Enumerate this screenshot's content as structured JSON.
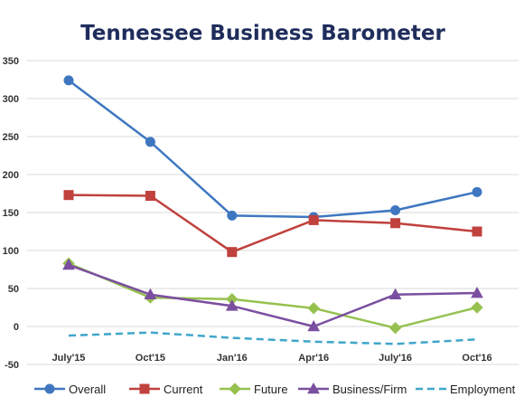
{
  "chart_data": {
    "type": "line",
    "title": "Tennessee Business Barometer",
    "xlabel": "",
    "ylabel": "",
    "categories": [
      "July'15",
      "Oct'15",
      "Jan'16",
      "Apr'16",
      "July'16",
      "Oct'16"
    ],
    "ylim": [
      -50,
      350
    ],
    "yticks": [
      -50,
      0,
      50,
      100,
      150,
      200,
      250,
      300,
      350
    ],
    "grid": "horizontal",
    "legend_position": "bottom",
    "series": [
      {
        "name": "Overall",
        "color": "#3e77c0",
        "marker": "circle",
        "dash": "solid",
        "values": [
          324,
          243,
          146,
          144,
          153,
          177
        ]
      },
      {
        "name": "Current",
        "color": "#c0413d",
        "marker": "square",
        "dash": "solid",
        "values": [
          173,
          172,
          98,
          140,
          136,
          125
        ]
      },
      {
        "name": "Future",
        "color": "#96c14f",
        "marker": "diamond",
        "dash": "solid",
        "values": [
          83,
          38,
          36,
          24,
          -2,
          25
        ]
      },
      {
        "name": "Business/Firm",
        "color": "#7b4fa0",
        "marker": "triangle",
        "dash": "solid",
        "values": [
          81,
          42,
          27,
          0,
          42,
          44
        ]
      },
      {
        "name": "Employment",
        "color": "#3fa6c9",
        "marker": "none",
        "dash": "dashed",
        "values": [
          -12,
          -8,
          -15,
          -20,
          -23,
          -17
        ]
      }
    ]
  }
}
